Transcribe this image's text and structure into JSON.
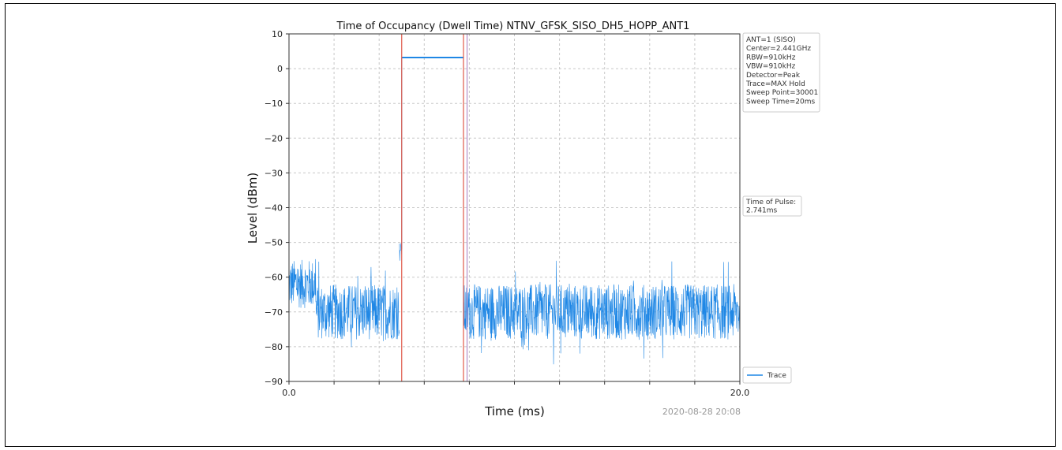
{
  "chart_data": {
    "type": "line",
    "title": "Time of Occupancy (Dwell Time) NTNV_GFSK_SISO_DH5_HOPP_ANT1",
    "xlabel": "Time (ms)",
    "ylabel": "Level (dBm)",
    "xlim": [
      0.0,
      20.0
    ],
    "ylim": [
      -90,
      10
    ],
    "x_tick_labels": [
      "0.0",
      "20.0"
    ],
    "y_ticks": [
      10,
      0,
      -10,
      -20,
      -30,
      -40,
      -50,
      -60,
      -70,
      -80,
      -90
    ],
    "y_tick_labels": [
      "10",
      "0",
      "−10",
      "−20",
      "−30",
      "−40",
      "−50",
      "−60",
      "−70",
      "−80",
      "−90"
    ],
    "grid": true,
    "series": [
      {
        "name": "Trace",
        "color": "#1f87e5",
        "segments": [
          {
            "x": [
              0.0,
              1.2
            ],
            "mean": -62,
            "spread": 7
          },
          {
            "x": [
              1.2,
              4.9
            ],
            "mean": -70,
            "spread": 8
          },
          {
            "x": [
              4.9,
              5.0
            ],
            "mean": -52,
            "spread": 2
          },
          {
            "x": [
              5.0,
              7.74
            ],
            "mean": 3.2,
            "spread": 0.3
          },
          {
            "x": [
              7.74,
              20.0
            ],
            "mean": -70,
            "spread": 8
          }
        ]
      }
    ],
    "markers": [
      {
        "x": 5.0,
        "color": "#e05a4a"
      },
      {
        "x": 7.74,
        "color": "#e05a4a"
      },
      {
        "x": 7.9,
        "color": "#b48fc8"
      }
    ],
    "info_box": [
      "ANT=1 (SISO)",
      "Center=2.441GHz",
      "RBW=910kHz",
      "VBW=910kHz",
      "Detector=Peak",
      "Trace=MAX Hold",
      "Sweep Point=30001",
      "Sweep Time=20ms"
    ],
    "pulse_box": [
      "Time of Pulse:",
      "2.741ms"
    ],
    "legend": {
      "label": "Trace",
      "position": "bottom-right outside"
    },
    "timestamp": "2020-08-28 20:08"
  }
}
